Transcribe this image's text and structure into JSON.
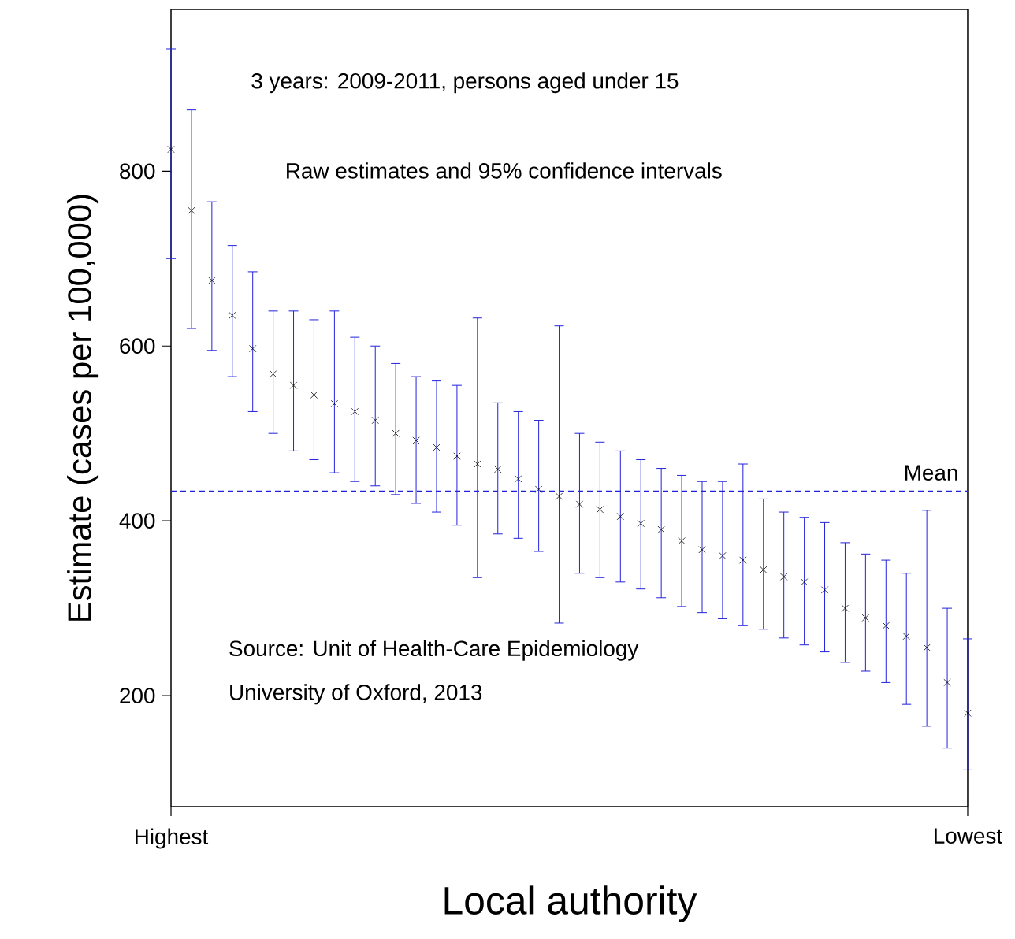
{
  "chart_data": {
    "type": "scatter",
    "xlabel": "Local authority",
    "ylabel": "Estimate (cases per 100,000)",
    "annotations": [
      "3 years: 2009-2011, persons aged under 15",
      "Raw estimates and 95% confidence intervals",
      "Source: Unit of Health-Care Epidemiology",
      "University of Oxford, 2013"
    ],
    "categories": [
      "Highest",
      null,
      null,
      null,
      null,
      null,
      null,
      null,
      null,
      null,
      null,
      null,
      null,
      null,
      null,
      null,
      null,
      null,
      null,
      null,
      null,
      null,
      null,
      null,
      null,
      null,
      null,
      null,
      null,
      null,
      null,
      null,
      null,
      null,
      null,
      null,
      null,
      null,
      null,
      "Lowest"
    ],
    "ylim": [
      73,
      985
    ],
    "yticks": [
      200,
      400,
      600,
      800
    ],
    "marker": "cross",
    "series": [
      {
        "color": "#000000",
        "values": [
          825,
          755,
          675,
          635,
          597,
          568,
          555,
          544,
          534,
          525,
          515,
          500,
          492,
          484,
          474,
          465,
          459,
          448,
          436,
          428,
          419,
          413,
          405,
          397,
          390,
          377,
          367,
          360,
          355,
          344,
          336,
          330,
          321,
          300,
          289,
          280,
          268,
          255,
          215,
          180
        ],
        "errors": [
          [
            700,
            940
          ],
          [
            620,
            870
          ],
          [
            595,
            765
          ],
          [
            565,
            715
          ],
          [
            525,
            685
          ],
          [
            500,
            640
          ],
          [
            480,
            640
          ],
          [
            470,
            630
          ],
          [
            455,
            640
          ],
          [
            445,
            610
          ],
          [
            440,
            600
          ],
          [
            430,
            580
          ],
          [
            420,
            565
          ],
          [
            410,
            560
          ],
          [
            395,
            555
          ],
          [
            335,
            632
          ],
          [
            385,
            535
          ],
          [
            380,
            525
          ],
          [
            365,
            515
          ],
          [
            283,
            623
          ],
          [
            340,
            500
          ],
          [
            335,
            490
          ],
          [
            330,
            480
          ],
          [
            322,
            470
          ],
          [
            312,
            460
          ],
          [
            302,
            452
          ],
          [
            295,
            445
          ],
          [
            288,
            445
          ],
          [
            280,
            465
          ],
          [
            276,
            425
          ],
          [
            266,
            410
          ],
          [
            258,
            404
          ],
          [
            250,
            398
          ],
          [
            238,
            375
          ],
          [
            228,
            362
          ],
          [
            215,
            355
          ],
          [
            190,
            340
          ],
          [
            165,
            412
          ],
          [
            140,
            300
          ],
          [
            115,
            265
          ]
        ]
      }
    ],
    "ref_lines": [
      {
        "axis": "y",
        "value": 434,
        "label": "Mean",
        "color": "#2222dd",
        "line_style": "dashed"
      }
    ]
  }
}
